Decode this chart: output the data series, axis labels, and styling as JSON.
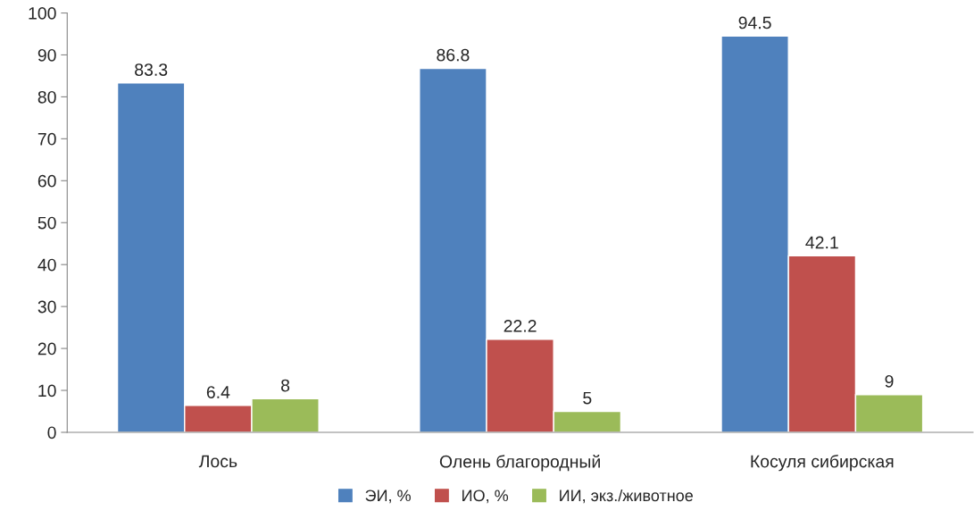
{
  "chart_data": {
    "type": "bar",
    "categories": [
      "Лось",
      "Олень благородный",
      "Косуля сибирская"
    ],
    "series": [
      {
        "name": "ЭИ, %",
        "color": "#4f81bd",
        "values": [
          83.3,
          86.8,
          94.5
        ]
      },
      {
        "name": "ИО, %",
        "color": "#c0504d",
        "values": [
          6.4,
          22.2,
          42.1
        ]
      },
      {
        "name": "ИИ, экз./животное",
        "color": "#9bbb59",
        "values": [
          8,
          5,
          9
        ]
      }
    ],
    "ylim": [
      0,
      100
    ],
    "yticks": [
      0,
      10,
      20,
      30,
      40,
      50,
      60,
      70,
      80,
      90,
      100
    ],
    "grid": false,
    "legend": "bottom",
    "data_labels": true
  }
}
